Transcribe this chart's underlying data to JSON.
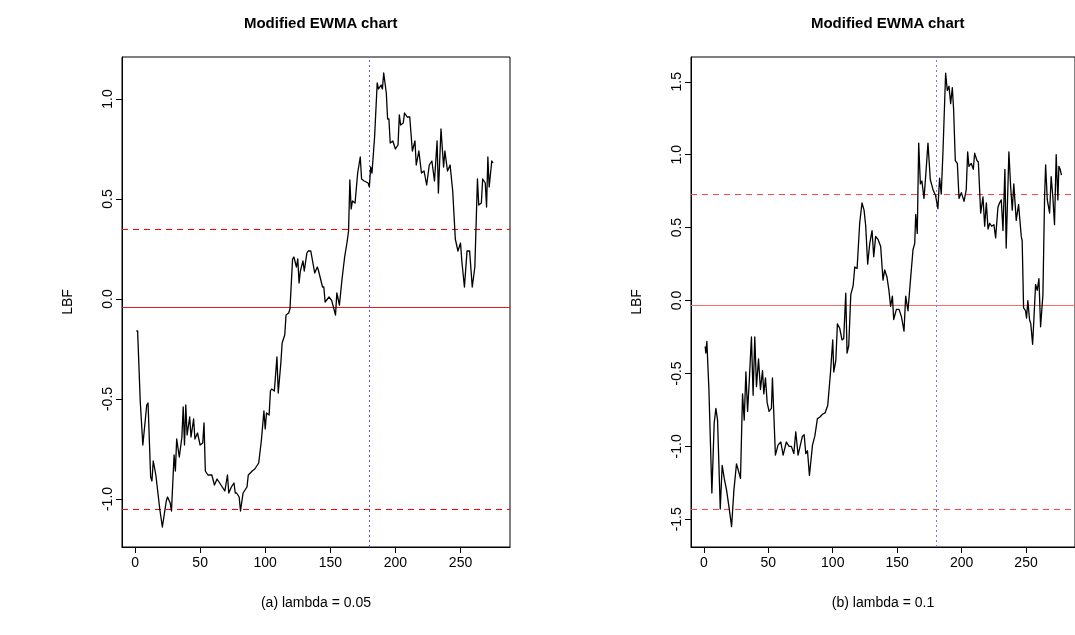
{
  "chart_data": [
    {
      "type": "line",
      "title": "Modified EWMA chart",
      "xlabel": "(a) lambda = 0.05",
      "ylabel": "LBF",
      "grid": false,
      "xlim": [
        -10,
        288
      ],
      "xticks": [
        0,
        50,
        100,
        150,
        200,
        250
      ],
      "ylim": [
        -1.24,
        1.21
      ],
      "yticks": [
        {
          "value": -1,
          "label": "-1.0"
        },
        -0.5,
        {
          "value": 0,
          "label": "0.0"
        },
        0.5,
        {
          "value": 1,
          "label": "1.0"
        }
      ],
      "ref_lines": [
        {
          "axis": "y",
          "value": 0.347,
          "label": null,
          "color": "#ff0000",
          "line_style": "dashed"
        },
        {
          "axis": "y",
          "value": -0.045,
          "label": null,
          "color": "#e02020",
          "line_style": "solid"
        },
        {
          "axis": "y",
          "value": -1.055,
          "label": null,
          "color": "#ff0000",
          "line_style": "dashed"
        },
        {
          "axis": "x",
          "value": 180,
          "label": null,
          "color": "#5555ff",
          "line_style": "dotted"
        }
      ],
      "series": [
        {
          "color": "#000000",
          "x": [
            1,
            2,
            4,
            6,
            9,
            10,
            12,
            13,
            14,
            16,
            19,
            21,
            24,
            25,
            27,
            28,
            30,
            31,
            32,
            34,
            36,
            37,
            38,
            39,
            40,
            42,
            43,
            45,
            46,
            48,
            50,
            52,
            53,
            54,
            56,
            59,
            61,
            63,
            66,
            69,
            71,
            72,
            74,
            76,
            77,
            78,
            80,
            81,
            83,
            86,
            87,
            90,
            92,
            95,
            97,
            99,
            100,
            101,
            103,
            104,
            105,
            107,
            109,
            110,
            112,
            113,
            115,
            116,
            118,
            119,
            121,
            122,
            124,
            125,
            126,
            127,
            129,
            130,
            132,
            133,
            135,
            138,
            140,
            141,
            144,
            145,
            146,
            149,
            151,
            154,
            155,
            157,
            159,
            161,
            163,
            164,
            165,
            166,
            167,
            169,
            171,
            173,
            174,
            176,
            179,
            180,
            181,
            182,
            184,
            186,
            187,
            189,
            190,
            191,
            193,
            194,
            195,
            196,
            198,
            200,
            202,
            203,
            204,
            206,
            207,
            209,
            211,
            213,
            215,
            216,
            218,
            220,
            222,
            224,
            226,
            228,
            230,
            232,
            233,
            235,
            237,
            238,
            240,
            242,
            244,
            246,
            248,
            250,
            251,
            253,
            255,
            257,
            259,
            261,
            263,
            264,
            266,
            267,
            269,
            270,
            271,
            272,
            274,
            275
          ],
          "values": [
            -0.16,
            -0.16,
            -0.51,
            -0.73,
            -0.53,
            -0.52,
            -0.89,
            -0.91,
            -0.81,
            -0.88,
            -1.05,
            -1.14,
            -1.01,
            -0.99,
            -1.02,
            -1.06,
            -0.78,
            -0.86,
            -0.7,
            -0.79,
            -0.69,
            -0.54,
            -0.73,
            -0.53,
            -0.68,
            -0.59,
            -0.69,
            -0.6,
            -0.7,
            -0.67,
            -0.73,
            -0.72,
            -0.62,
            -0.86,
            -0.88,
            -0.88,
            -0.93,
            -0.9,
            -0.93,
            -0.96,
            -0.88,
            -0.97,
            -0.94,
            -0.92,
            -0.97,
            -0.97,
            -0.99,
            -1.06,
            -0.97,
            -0.94,
            -0.88,
            -0.86,
            -0.85,
            -0.82,
            -0.71,
            -0.56,
            -0.65,
            -0.57,
            -0.58,
            -0.46,
            -0.45,
            -0.46,
            -0.29,
            -0.47,
            -0.32,
            -0.22,
            -0.18,
            -0.08,
            -0.07,
            -0.05,
            0.2,
            0.21,
            0.16,
            0.2,
            0.08,
            0.14,
            0.19,
            0.14,
            0.23,
            0.24,
            0.24,
            0.13,
            0.16,
            0.14,
            0.06,
            0.06,
            -0.015,
            0.01,
            -0.007,
            -0.08,
            0.03,
            -0.03,
            0.1,
            0.21,
            0.29,
            0.34,
            0.595,
            0.45,
            0.49,
            0.48,
            0.63,
            0.71,
            0.6,
            0.59,
            0.58,
            0.56,
            0.66,
            0.63,
            0.81,
            1.08,
            1.05,
            1.07,
            1.05,
            1.13,
            1.03,
            0.9,
            0.9,
            0.78,
            0.79,
            0.75,
            0.77,
            0.92,
            0.87,
            0.88,
            0.93,
            0.91,
            0.91,
            0.74,
            0.79,
            0.67,
            0.74,
            0.63,
            0.64,
            0.57,
            0.67,
            0.69,
            0.59,
            0.79,
            0.53,
            0.85,
            0.66,
            0.74,
            0.64,
            0.67,
            0.54,
            0.3,
            0.24,
            0.28,
            0.19,
            0.06,
            0.24,
            0.24,
            0.06,
            0.16,
            0.6,
            0.47,
            0.48,
            0.6,
            0.58,
            0.46,
            0.71,
            0.56,
            0.69,
            0.68
          ]
        }
      ]
    },
    {
      "type": "line",
      "title": "Modified EWMA chart",
      "xlabel": "(b) lambda = 0.1",
      "ylabel": "LBF",
      "grid": false,
      "xlim": [
        -10,
        288
      ],
      "xticks": [
        0,
        50,
        100,
        150,
        200,
        250
      ],
      "ylim": [
        -1.69,
        1.67
      ],
      "yticks": [
        -1.5,
        {
          "value": -1,
          "label": "-1.0"
        },
        -0.5,
        {
          "value": 0,
          "label": "0.0"
        },
        0.5,
        {
          "value": 1,
          "label": "1.0"
        },
        1.5
      ],
      "ref_lines": [
        {
          "axis": "y",
          "value": 0.734,
          "label": null,
          "color": "#ff4444",
          "line_style": "dashed"
        },
        {
          "axis": "y",
          "value": -0.027,
          "label": null,
          "color": "#ff6a6a",
          "line_style": "solid"
        },
        {
          "axis": "y",
          "value": -1.433,
          "label": null,
          "color": "#ff4444",
          "line_style": "dashed"
        },
        {
          "axis": "x",
          "value": 180,
          "label": null,
          "color": "#7777ff",
          "line_style": "dotted"
        }
      ],
      "series": [
        {
          "color": "#000000",
          "x": [
            1,
            1.5,
            2.3,
            3.9,
            6.2,
            8,
            9.3,
            10.6,
            12.7,
            14.2,
            15.8,
            17.6,
            19.7,
            21.5,
            23.3,
            25.3,
            26.6,
            28.4,
            30,
            31.3,
            32.6,
            33.9,
            35.1,
            36.9,
            38.2,
            39.5,
            40.8,
            42.4,
            43.9,
            45.5,
            46.5,
            47.8,
            49.1,
            50.6,
            52.4,
            53.2,
            55.5,
            57.6,
            59.7,
            61.5,
            64,
            66.1,
            67.9,
            69.8,
            71.3,
            73.1,
            74.9,
            76.5,
            77.8,
            79.1,
            80.4,
            81.9,
            84.3,
            86.1,
            88.1,
            89.9,
            92,
            94.1,
            96.1,
            98.2,
            100,
            100.8,
            102.4,
            103.6,
            105.4,
            107.2,
            108.5,
            110.1,
            111.1,
            112.4,
            114,
            115.8,
            117.1,
            118.9,
            120.9,
            122.7,
            124.3,
            125.6,
            127.1,
            128.7,
            130.5,
            131.8,
            133.3,
            135.1,
            137.2,
            139,
            140.3,
            142.1,
            143.6,
            144.9,
            146.3,
            147.3,
            149.4,
            151.4,
            153.3,
            155.3,
            156.6,
            158.4,
            160.5,
            162.3,
            163.6,
            164.4,
            165.6,
            166.7,
            168,
            169.2,
            170.8,
            172.1,
            173.9,
            175.7,
            177.8,
            179.8,
            181.6,
            182.9,
            184.2,
            185.5,
            187.6,
            188.9,
            190.2,
            191.5,
            192.8,
            193.8,
            195.1,
            196.7,
            198,
            199.8,
            201.9,
            203.6,
            204.7,
            205.7,
            207.5,
            209.1,
            210.1,
            211.9,
            213,
            214.8,
            216.6,
            217.9,
            219.2,
            220.5,
            221.8,
            223.3,
            225.1,
            226.4,
            228.2,
            229.5,
            230.8,
            232.1,
            233.6,
            234.6,
            236.7,
            238,
            239.3,
            240.5,
            242.4,
            244.2,
            246.3,
            247,
            248.1,
            249.6,
            250.4,
            251.4,
            252.7,
            253.7,
            255.1,
            256.1,
            257.4,
            258.7,
            260,
            261.3,
            263.1,
            264.4,
            265.2,
            266.5,
            268.3,
            269.5,
            270.8,
            272.1,
            273.4,
            274.7,
            275.5,
            276.5,
            277.5
          ],
          "values": [
            -0.315,
            -0.36,
            -0.28,
            -0.61,
            -1.32,
            -0.84,
            -0.74,
            -0.82,
            -1.43,
            -1.13,
            -1.22,
            -1.3,
            -1.43,
            -1.55,
            -1.3,
            -1.12,
            -1.16,
            -1.22,
            -0.64,
            -0.82,
            -0.49,
            -0.76,
            -0.57,
            -0.25,
            -0.65,
            -0.25,
            -0.59,
            -0.4,
            -0.61,
            -0.48,
            -0.64,
            -0.53,
            -0.7,
            -0.76,
            -0.74,
            -0.53,
            -1.06,
            -0.99,
            -0.97,
            -1.06,
            -0.97,
            -1,
            -1,
            -1.05,
            -0.9,
            -1.06,
            -0.99,
            -0.93,
            -0.92,
            -1.05,
            -1.03,
            -1.2,
            -0.99,
            -0.93,
            -0.81,
            -0.8,
            -0.78,
            -0.77,
            -0.72,
            -0.5,
            -0.27,
            -0.49,
            -0.41,
            -0.16,
            -0.19,
            -0.27,
            -0.26,
            0.05,
            -0.36,
            -0.31,
            0.04,
            0.1,
            0.23,
            0.22,
            0.53,
            0.67,
            0.62,
            0.51,
            0.25,
            0.39,
            0.48,
            0.3,
            0.44,
            0.42,
            0.37,
            0.14,
            0.21,
            0.16,
            0.07,
            -0.04,
            0.03,
            -0.13,
            -0.06,
            -0.06,
            -0.11,
            -0.21,
            0.03,
            -0.07,
            0.16,
            0.35,
            0.39,
            0.59,
            0.46,
            1.08,
            0.8,
            0.82,
            0.7,
            0.85,
            1.08,
            0.83,
            0.76,
            0.72,
            0.63,
            0.84,
            0.73,
            1.01,
            1.56,
            1.44,
            1.47,
            1.35,
            1.46,
            1.31,
            0.96,
            0.94,
            0.7,
            0.74,
            0.68,
            0.76,
            1.02,
            0.92,
            0.94,
            0.9,
            1.01,
            0.96,
            0.95,
            0.6,
            0.71,
            0.51,
            0.67,
            0.49,
            0.53,
            0.51,
            0.52,
            0.43,
            0.64,
            0.67,
            0.69,
            0.48,
            0.9,
            0.36,
            1.02,
            0.79,
            0.62,
            0.8,
            0.55,
            0.66,
            0.44,
            0.41,
            -0.05,
            -0.07,
            -0.12,
            0,
            -0.13,
            -0.16,
            -0.3,
            -0.13,
            0.11,
            0.07,
            0.15,
            -0.18,
            0.04,
            0.71,
            0.93,
            0.69,
            0.6,
            0.85,
            0.71,
            0.52,
            1,
            0.69,
            0.92,
            0.9,
            0.86
          ]
        }
      ]
    }
  ]
}
